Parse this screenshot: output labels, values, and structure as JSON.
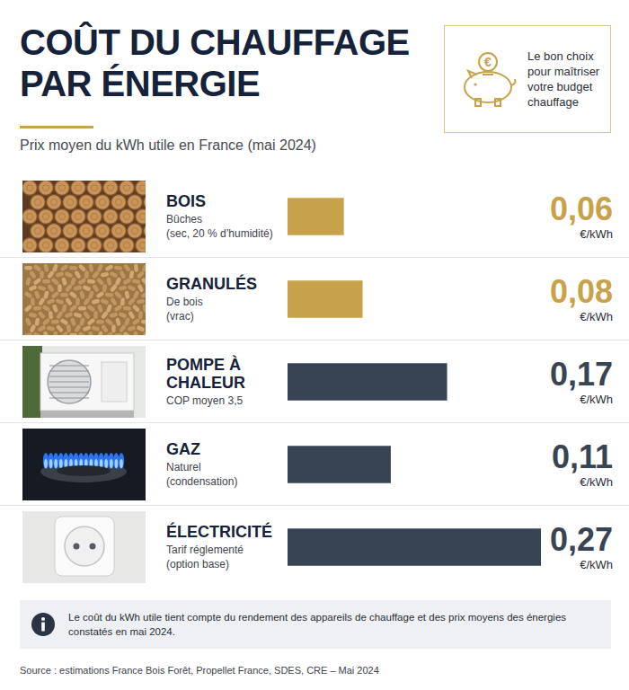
{
  "chart_data": {
    "type": "bar",
    "orientation": "horizontal",
    "title": "COÛT DU CHAUFFAGE PAR ÉNERGIE",
    "subtitle": "Prix moyen du kWh utile en France (mai 2024)",
    "callout": "Le bon choix pour maîtriser votre budget chauffage",
    "callout_symbol": "€",
    "categories": [
      "BOIS",
      "GRANULÉS",
      "POMPE À CHALEUR",
      "GAZ",
      "ÉLECTRICITÉ"
    ],
    "descriptions": [
      [
        "Bûches",
        "(sec, 20 % d’humidité)"
      ],
      [
        "De bois",
        "(vrac)"
      ],
      [
        "COP moyen 3,5"
      ],
      [
        "Naturel",
        "(condensation)"
      ],
      [
        "Tarif réglementé",
        "(option base)"
      ]
    ],
    "values": [
      0.06,
      0.08,
      0.17,
      0.11,
      0.27
    ],
    "value_labels": [
      "0,06",
      "0,08",
      "0,17",
      "0,11",
      "0,27"
    ],
    "unit": "€/kWh",
    "colors": [
      "#c8a24a",
      "#c8a24a",
      "#384354",
      "#384354",
      "#384354"
    ],
    "xlim": [
      0,
      0.27
    ],
    "grid": false,
    "tick_labels": false,
    "data_labels": true,
    "note": "Le coût du kWh utile tient compte du rendement des appareils de chauffage et des prix moyens des énergies constatés en mai 2024.",
    "source": "Source : estimations France Bois Forêt, Propellet France, SDES, CRE – Mai 2024"
  }
}
